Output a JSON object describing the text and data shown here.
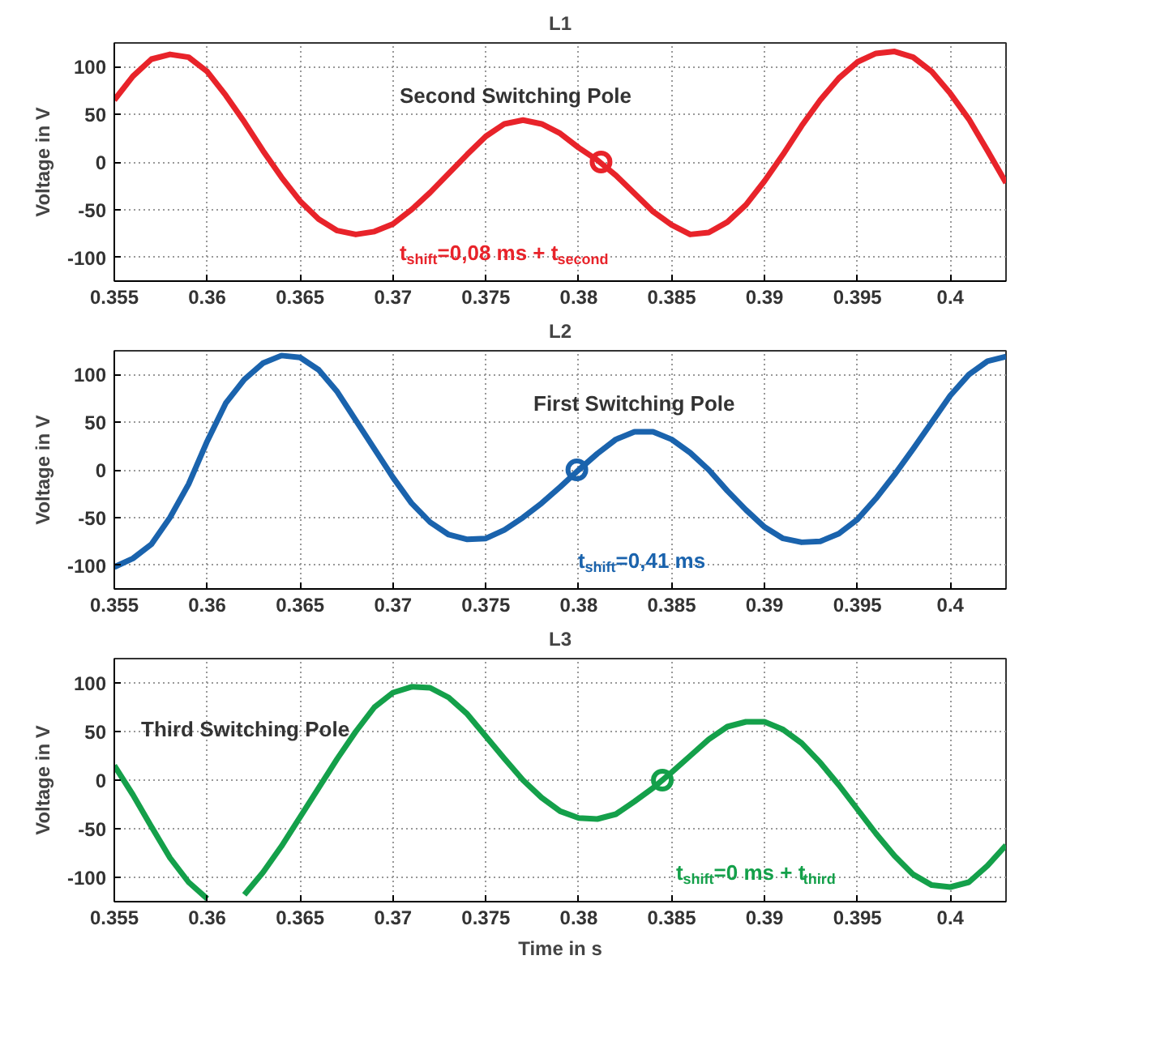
{
  "chart_data": [
    {
      "type": "line",
      "title": "L1",
      "ylabel": "Voltage in V",
      "xlim": [
        0.355,
        0.403
      ],
      "ylim": [
        -125,
        125
      ],
      "xticks": [
        0.355,
        0.36,
        0.365,
        0.37,
        0.375,
        0.38,
        0.385,
        0.39,
        0.395,
        0.4
      ],
      "yticks": [
        -100,
        -50,
        0,
        50,
        100
      ],
      "grid": true,
      "x": [
        0.355,
        0.356,
        0.357,
        0.358,
        0.359,
        0.36,
        0.361,
        0.362,
        0.363,
        0.364,
        0.365,
        0.366,
        0.367,
        0.368,
        0.369,
        0.37,
        0.371,
        0.372,
        0.373,
        0.374,
        0.375,
        0.376,
        0.377,
        0.378,
        0.379,
        0.38,
        0.381,
        0.382,
        0.383,
        0.384,
        0.385,
        0.386,
        0.387,
        0.388,
        0.389,
        0.39,
        0.391,
        0.392,
        0.393,
        0.394,
        0.395,
        0.396,
        0.397,
        0.398,
        0.399,
        0.4,
        0.401,
        0.402,
        0.403
      ],
      "series": [
        {
          "color": "#e8232a",
          "values": [
            65,
            90,
            108,
            113,
            110,
            95,
            70,
            42,
            12,
            -16,
            -41,
            -60,
            -72,
            -76,
            -73,
            -65,
            -50,
            -32,
            -12,
            8,
            27,
            40,
            44,
            40,
            30,
            15,
            2,
            -14,
            -33,
            -52,
            -66,
            -76,
            -74,
            -63,
            -45,
            -20,
            8,
            38,
            65,
            88,
            105,
            114,
            116,
            110,
            95,
            72,
            45,
            12,
            -22
          ]
        },
        {
          "type": "scatter",
          "marker": "circle",
          "color": "#e8232a",
          "x": [
            0.3812
          ],
          "values": [
            0
          ]
        }
      ],
      "annotations": [
        "Second Switching Pole",
        "t$_{shift}$=0,08 ms + t$_{second}$"
      ]
    },
    {
      "type": "line",
      "title": "L2",
      "ylabel": "Voltage in V",
      "xlim": [
        0.355,
        0.403
      ],
      "ylim": [
        -125,
        125
      ],
      "xticks": [
        0.355,
        0.36,
        0.365,
        0.37,
        0.375,
        0.38,
        0.385,
        0.39,
        0.395,
        0.4
      ],
      "yticks": [
        -100,
        -50,
        0,
        50,
        100
      ],
      "grid": true,
      "x": [
        0.355,
        0.356,
        0.357,
        0.358,
        0.359,
        0.36,
        0.361,
        0.362,
        0.363,
        0.364,
        0.365,
        0.366,
        0.367,
        0.368,
        0.369,
        0.37,
        0.371,
        0.372,
        0.373,
        0.374,
        0.375,
        0.376,
        0.377,
        0.378,
        0.379,
        0.38,
        0.381,
        0.382,
        0.383,
        0.384,
        0.385,
        0.386,
        0.387,
        0.388,
        0.389,
        0.39,
        0.391,
        0.392,
        0.393,
        0.394,
        0.395,
        0.396,
        0.397,
        0.398,
        0.399,
        0.4,
        0.401,
        0.402,
        0.403
      ],
      "series": [
        {
          "color": "#1a63ad",
          "values": [
            -102,
            -93,
            -78,
            -50,
            -15,
            30,
            70,
            95,
            112,
            120,
            118,
            105,
            82,
            52,
            22,
            -8,
            -35,
            -55,
            -68,
            -73,
            -72,
            -63,
            -50,
            -35,
            -18,
            0,
            17,
            32,
            40,
            40,
            32,
            18,
            0,
            -22,
            -42,
            -60,
            -72,
            -76,
            -75,
            -67,
            -52,
            -30,
            -5,
            22,
            50,
            78,
            100,
            114,
            119
          ]
        },
        {
          "type": "scatter",
          "marker": "circle",
          "color": "#1a63ad",
          "x": [
            0.3799
          ],
          "values": [
            0
          ]
        }
      ],
      "annotations": [
        "First Switching Pole",
        "t$_{shift}$=0,41 ms"
      ]
    },
    {
      "type": "line",
      "title": "L3",
      "ylabel": "Voltage in V",
      "xlabel": "Time in s",
      "xlim": [
        0.355,
        0.403
      ],
      "ylim": [
        -125,
        125
      ],
      "xticks": [
        0.355,
        0.36,
        0.365,
        0.37,
        0.375,
        0.38,
        0.385,
        0.39,
        0.395,
        0.4
      ],
      "yticks": [
        -100,
        -50,
        0,
        50,
        100
      ],
      "grid": true,
      "x": [
        0.355,
        0.356,
        0.357,
        0.358,
        0.359,
        0.36,
        0.3603,
        0.361,
        0.3617,
        0.362,
        0.363,
        0.364,
        0.365,
        0.366,
        0.367,
        0.368,
        0.369,
        0.37,
        0.371,
        0.372,
        0.373,
        0.374,
        0.375,
        0.376,
        0.377,
        0.378,
        0.379,
        0.38,
        0.381,
        0.382,
        0.383,
        0.384,
        0.3845,
        0.385,
        0.386,
        0.387,
        0.388,
        0.389,
        0.39,
        0.391,
        0.392,
        0.393,
        0.394,
        0.395,
        0.396,
        0.397,
        0.398,
        0.399,
        0.4,
        0.401,
        0.402,
        0.403
      ],
      "series": [
        {
          "color": "#14a04a",
          "values": [
            15,
            -15,
            -48,
            -80,
            -105,
            -122,
            null,
            null,
            null,
            -118,
            -95,
            -68,
            -38,
            -8,
            22,
            50,
            75,
            90,
            96,
            95,
            85,
            68,
            45,
            22,
            0,
            -18,
            -32,
            -39,
            -40,
            -35,
            -22,
            -8,
            0,
            8,
            25,
            42,
            55,
            60,
            60,
            52,
            38,
            18,
            -5,
            -30,
            -55,
            -78,
            -97,
            -108,
            -110,
            -105,
            -88,
            -67
          ]
        },
        {
          "type": "scatter",
          "marker": "circle",
          "color": "#14a04a",
          "x": [
            0.3845
          ],
          "values": [
            0
          ]
        }
      ],
      "annotations": [
        "Third Switching Pole",
        "t$_{shift}$=0 ms + t$_{third}$"
      ]
    }
  ]
}
